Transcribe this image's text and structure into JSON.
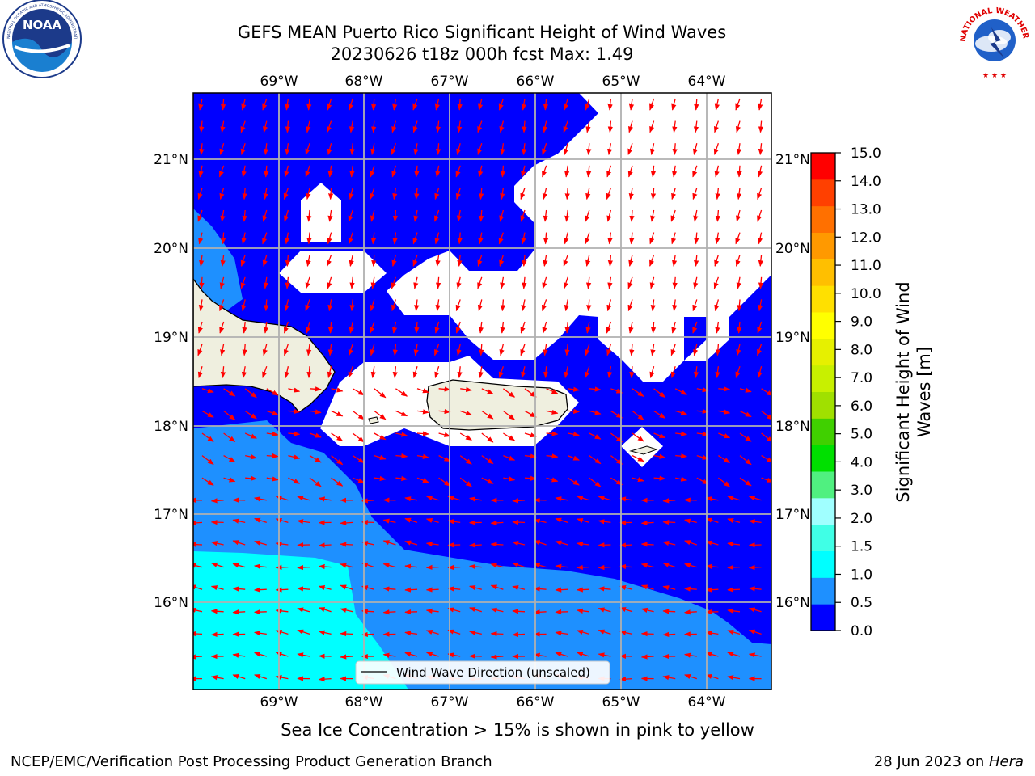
{
  "title_line1": "GEFS MEAN Puerto Rico Significant Height of Wind Waves",
  "title_line2": "20230626 t18z 000h fcst   Max: 1.49",
  "logo_left_text": "NOAA",
  "logo_left_ring": "NATIONAL OCEANIC AND ATMOSPHERIC ADMINISTRATION · U.S. DEPARTMENT OF COMMERCE",
  "logo_right_ring": "NATIONAL WEATHER SERVICE",
  "map": {
    "lon_labels": [
      "69°W",
      "68°W",
      "67°W",
      "66°W",
      "65°W",
      "64°W"
    ],
    "lat_labels": [
      "21°N",
      "20°N",
      "19°N",
      "18°N",
      "17°N",
      "16°N"
    ],
    "legend_label": "Wind Wave Direction (unscaled)",
    "colors": {
      "ocean_low": "#0000ff",
      "ocean_mid": "#1e90ff",
      "ocean_high": "#00ffff",
      "land": "#efefdf",
      "arrow": "#ff0000",
      "grid": "#b0b0b0"
    }
  },
  "colorbar": {
    "ticks": [
      "15.0",
      "14.0",
      "13.0",
      "12.0",
      "11.0",
      "10.0",
      "9.0",
      "8.0",
      "7.0",
      "6.0",
      "5.0",
      "4.0",
      "3.0",
      "2.0",
      "1.5",
      "1.0",
      "0.5",
      "0.0"
    ],
    "label_line1": "Significant Height of Wind",
    "label_line2": "Waves [m]",
    "colors": [
      "#0000ff",
      "#1e90ff",
      "#00ffff",
      "#40ffe6",
      "#a0ffff",
      "#50f080",
      "#00e000",
      "#40d000",
      "#a0e000",
      "#c8f000",
      "#e6f000",
      "#ffff00",
      "#ffe000",
      "#ffbf00",
      "#ff9900",
      "#ff7000",
      "#ff4000",
      "#ff0000"
    ]
  },
  "caption": "Sea Ice Concentration > 15% is shown in pink to yellow",
  "footer_left": "NCEP/EMC/Verification Post Processing Product Generation Branch",
  "footer_right_date": "28 Jun 2023 on ",
  "footer_right_host": "Hera"
}
